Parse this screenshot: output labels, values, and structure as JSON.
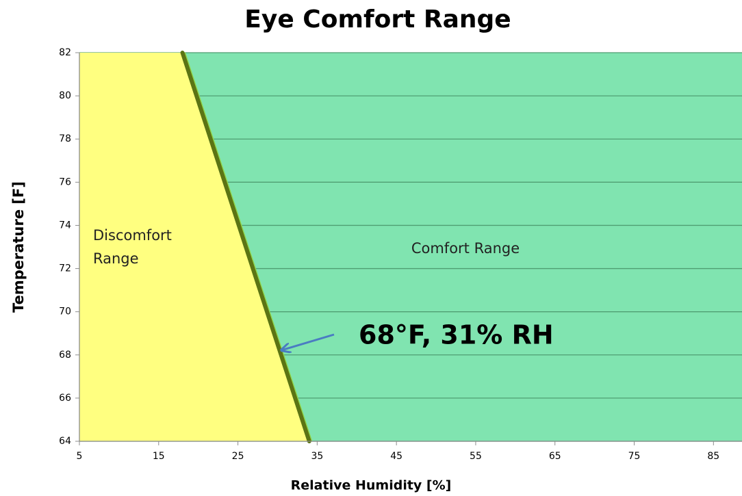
{
  "chart_data": {
    "type": "area",
    "title": "Eye Comfort Range",
    "xlabel": "Relative Humidity [%]",
    "ylabel": "Temperature [F]",
    "xlim": [
      5,
      88.6
    ],
    "ylim": [
      64,
      82
    ],
    "xticks": [
      5,
      15,
      25,
      35,
      45,
      55,
      65,
      75,
      85
    ],
    "yticks": [
      64,
      66,
      68,
      70,
      72,
      74,
      76,
      78,
      80,
      82
    ],
    "grid": true,
    "grid_color": "#4f9e72",
    "boundary": {
      "x": [
        34,
        18
      ],
      "y": [
        64,
        82
      ],
      "color": "#5b7414"
    },
    "left_color": "#ffff80",
    "right_color": "#80e4b0",
    "annotations": {
      "discomfort": [
        "Discomfort",
        "Range"
      ],
      "comfort": "Comfort Range",
      "point": "68°F, 31% RH"
    }
  }
}
